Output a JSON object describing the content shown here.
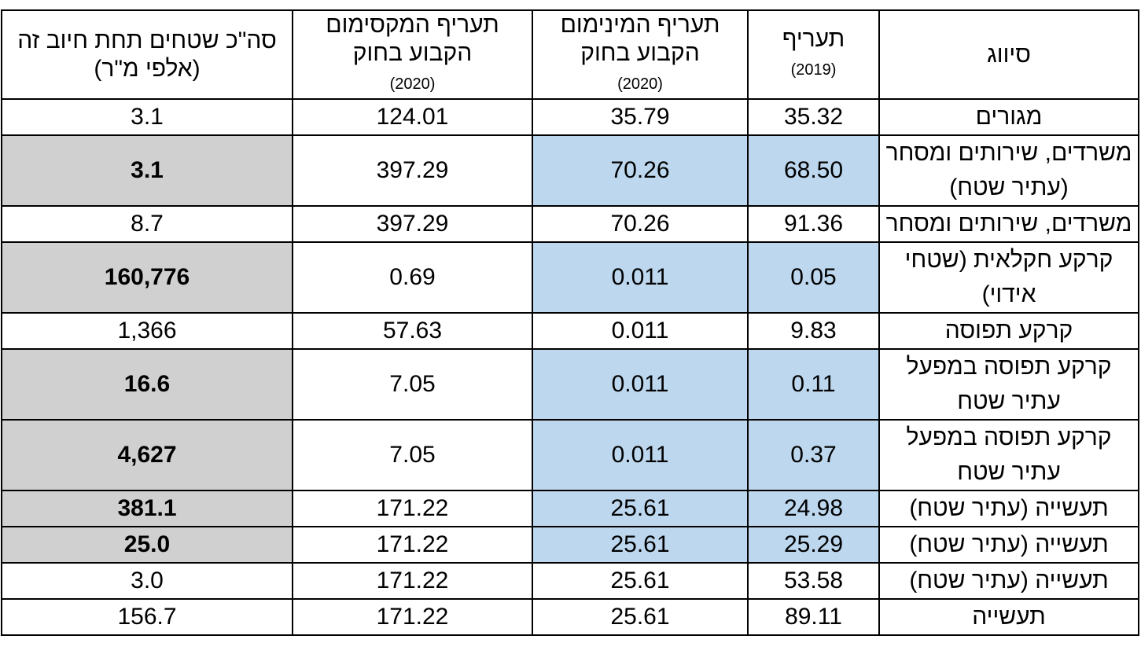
{
  "table": {
    "headers": [
      {
        "text": "סיווג"
      },
      {
        "text": "תעריף",
        "note": "(2019)"
      },
      {
        "text": "תעריף המינימום הקבוע בחוק",
        "note": "(2020)"
      },
      {
        "text": "תעריף המקסימום הקבוע בחוק",
        "note": "(2020)"
      },
      {
        "text": "סה\"כ שטחים תחת חיוב זה (אלפי מ\"ר)"
      }
    ],
    "rows": [
      {
        "cells": [
          "מגורים",
          "35.32",
          "35.79",
          "124.01",
          "3.1"
        ]
      },
      {
        "cells": [
          "משרדים, שירותים ומסחר (עתיר שטח)",
          "68.50",
          "70.26",
          "397.29",
          "3.1"
        ],
        "highlight": true
      },
      {
        "cells": [
          "משרדים, שירותים ומסחר",
          "91.36",
          "70.26",
          "397.29",
          "8.7"
        ]
      },
      {
        "cells": [
          "קרקע חקלאית (שטחי אידוי)",
          "0.05",
          "0.011",
          "0.69",
          "160,776"
        ],
        "highlight": true
      },
      {
        "cells": [
          "קרקע תפוסה",
          "9.83",
          "0.011",
          "57.63",
          "1,366"
        ]
      },
      {
        "cells": [
          "קרקע תפוסה במפעל עתיר שטח",
          "0.11",
          "0.011",
          "7.05",
          "16.6"
        ],
        "highlight": true
      },
      {
        "cells": [
          "קרקע תפוסה במפעל עתיר שטח",
          "0.37",
          "0.011",
          "7.05",
          "4,627"
        ],
        "highlight": true
      },
      {
        "cells": [
          "תעשייה (עתיר שטח)",
          "24.98",
          "25.61",
          "171.22",
          "381.1"
        ],
        "highlight": true
      },
      {
        "cells": [
          "תעשייה (עתיר שטח)",
          "25.29",
          "25.61",
          "171.22",
          "25.0"
        ],
        "highlight": true
      },
      {
        "cells": [
          "תעשייה (עתיר שטח)",
          "53.58",
          "25.61",
          "171.22",
          "3.0"
        ]
      },
      {
        "cells": [
          "תעשייה",
          "89.11",
          "25.61",
          "171.22",
          "156.7"
        ]
      }
    ]
  }
}
